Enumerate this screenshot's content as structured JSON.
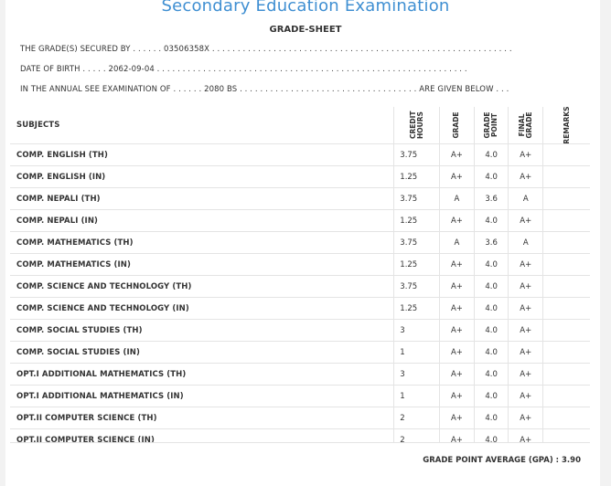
{
  "header": {
    "exam_title": "Secondary Education Examination",
    "sheet_title": "GRADE-SHEET"
  },
  "info": {
    "secured_label": "THE GRADE(S) SECURED BY",
    "secured_dots": ". . . . . .",
    "symbol_no": "03506358X",
    "secured_trailing": ". . . . . . . . . . . . . . . . . . . . . . . . . . . . . . . . . . . . . . . . . . . . . . . . . . . . . . . . . . .",
    "dob_label": "DATE OF BIRTH",
    "dob_dots": ". . . . .",
    "dob_value": "2062-09-04",
    "dob_trailing": ". . . . . . . . . . . . . . . . . . . . . . . . . . . . . . . . . . . . . . . . . . . . . . . . . . . . . . . . . . . . .",
    "exam_label": "IN THE ANNUAL SEE EXAMINATION OF",
    "exam_dots": ". . . . . .",
    "exam_year": "2080 BS",
    "exam_trailing": ". . . . . . . . . . . . . . . . . . . . . . . . . . . . . . . . . . .",
    "given_below": "ARE GIVEN BELOW . . ."
  },
  "table": {
    "headers": {
      "subjects": "SUBJECTS",
      "credit_hours": "CREDIT HOURS",
      "grade": "GRADE",
      "grade_point": "GRADE POINT",
      "final_grade": "FINAL GRADE",
      "remarks": "REMARKS"
    },
    "rows": [
      {
        "subject": "COMP. ENGLISH (TH)",
        "credit": "3.75",
        "grade": "A+",
        "point": "4.0",
        "final": "A+"
      },
      {
        "subject": "COMP. ENGLISH (IN)",
        "credit": "1.25",
        "grade": "A+",
        "point": "4.0",
        "final": "A+"
      },
      {
        "subject": "COMP. NEPALI (TH)",
        "credit": "3.75",
        "grade": "A",
        "point": "3.6",
        "final": "A"
      },
      {
        "subject": "COMP. NEPALI (IN)",
        "credit": "1.25",
        "grade": "A+",
        "point": "4.0",
        "final": "A+"
      },
      {
        "subject": "COMP. MATHEMATICS (TH)",
        "credit": "3.75",
        "grade": "A",
        "point": "3.6",
        "final": "A"
      },
      {
        "subject": "COMP. MATHEMATICS (IN)",
        "credit": "1.25",
        "grade": "A+",
        "point": "4.0",
        "final": "A+"
      },
      {
        "subject": "COMP. SCIENCE AND TECHNOLOGY (TH)",
        "credit": "3.75",
        "grade": "A+",
        "point": "4.0",
        "final": "A+"
      },
      {
        "subject": "COMP. SCIENCE AND TECHNOLOGY (IN)",
        "credit": "1.25",
        "grade": "A+",
        "point": "4.0",
        "final": "A+"
      },
      {
        "subject": "COMP. SOCIAL STUDIES (TH)",
        "credit": "3",
        "grade": "A+",
        "point": "4.0",
        "final": "A+"
      },
      {
        "subject": "COMP. SOCIAL STUDIES (IN)",
        "credit": "1",
        "grade": "A+",
        "point": "4.0",
        "final": "A+"
      },
      {
        "subject": "OPT.I ADDITIONAL MATHEMATICS (TH)",
        "credit": "3",
        "grade": "A+",
        "point": "4.0",
        "final": "A+"
      },
      {
        "subject": "OPT.I ADDITIONAL MATHEMATICS (IN)",
        "credit": "1",
        "grade": "A+",
        "point": "4.0",
        "final": "A+"
      },
      {
        "subject": "OPT.II COMPUTER SCIENCE (TH)",
        "credit": "2",
        "grade": "A+",
        "point": "4.0",
        "final": "A+"
      },
      {
        "subject": "OPT.II COMPUTER SCIENCE (IN)",
        "credit": "2",
        "grade": "A+",
        "point": "4.0",
        "final": "A+"
      }
    ]
  },
  "gpa": {
    "text": "GRADE POINT AVERAGE (GPA) : 3.90"
  }
}
